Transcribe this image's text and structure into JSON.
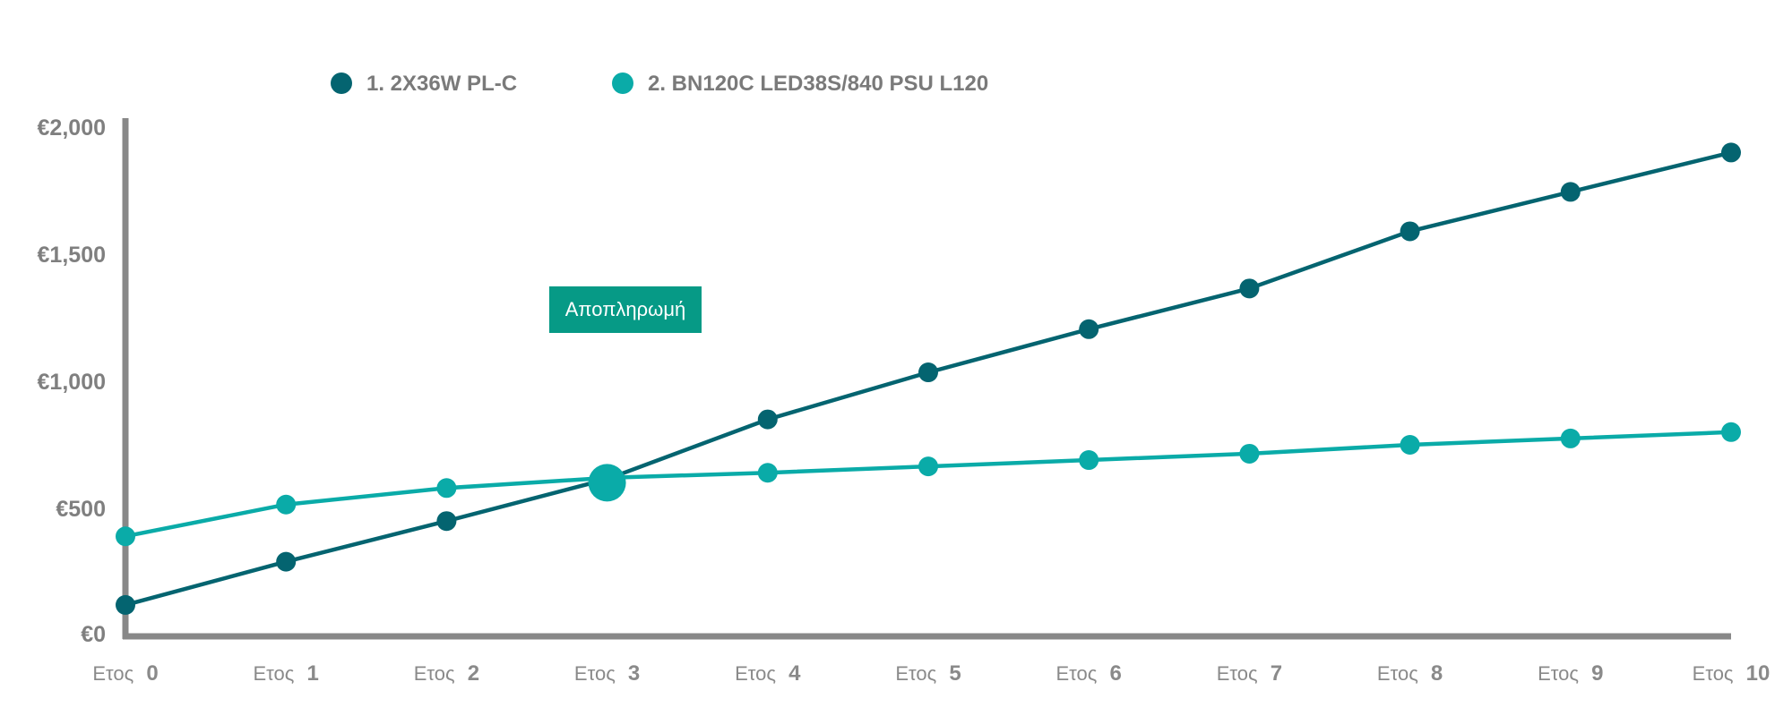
{
  "chart_data": {
    "type": "line",
    "title": "",
    "xlabel": "",
    "ylabel": "",
    "ylim": [
      0,
      2000
    ],
    "grid": false,
    "legend_position": "top-left",
    "categories": [
      {
        "word": "Ετος",
        "num": "0"
      },
      {
        "word": "Ετος",
        "num": "1"
      },
      {
        "word": "Ετος",
        "num": "2"
      },
      {
        "word": "Ετος",
        "num": "3"
      },
      {
        "word": "Ετος",
        "num": "4"
      },
      {
        "word": "Ετος",
        "num": "5"
      },
      {
        "word": "Ετος",
        "num": "6"
      },
      {
        "word": "Ετος",
        "num": "7"
      },
      {
        "word": "Ετος",
        "num": "8"
      },
      {
        "word": "Ετος",
        "num": "9"
      },
      {
        "word": "Ετος",
        "num": "10"
      }
    ],
    "y_ticks": [
      {
        "value": 0,
        "label": "€0"
      },
      {
        "value": 500,
        "label": "€500"
      },
      {
        "value": 1000,
        "label": "€1,000"
      },
      {
        "value": 1500,
        "label": "€1,500"
      },
      {
        "value": 2000,
        "label": "€2,000"
      }
    ],
    "series": [
      {
        "name": "1. 2X36W PL-C",
        "color": "#046470",
        "values": [
          120,
          290,
          450,
          615,
          850,
          1035,
          1205,
          1365,
          1590,
          1745,
          1900
        ]
      },
      {
        "name": "2. BN120C LED38S/840 PSU L120",
        "color": "#0aaba8",
        "values": [
          390,
          515,
          580,
          620,
          640,
          665,
          690,
          715,
          750,
          775,
          800
        ]
      }
    ],
    "payback": {
      "label": "Αποπληρωμή",
      "x_index": 3,
      "value": 615,
      "color": "#069a86"
    }
  }
}
